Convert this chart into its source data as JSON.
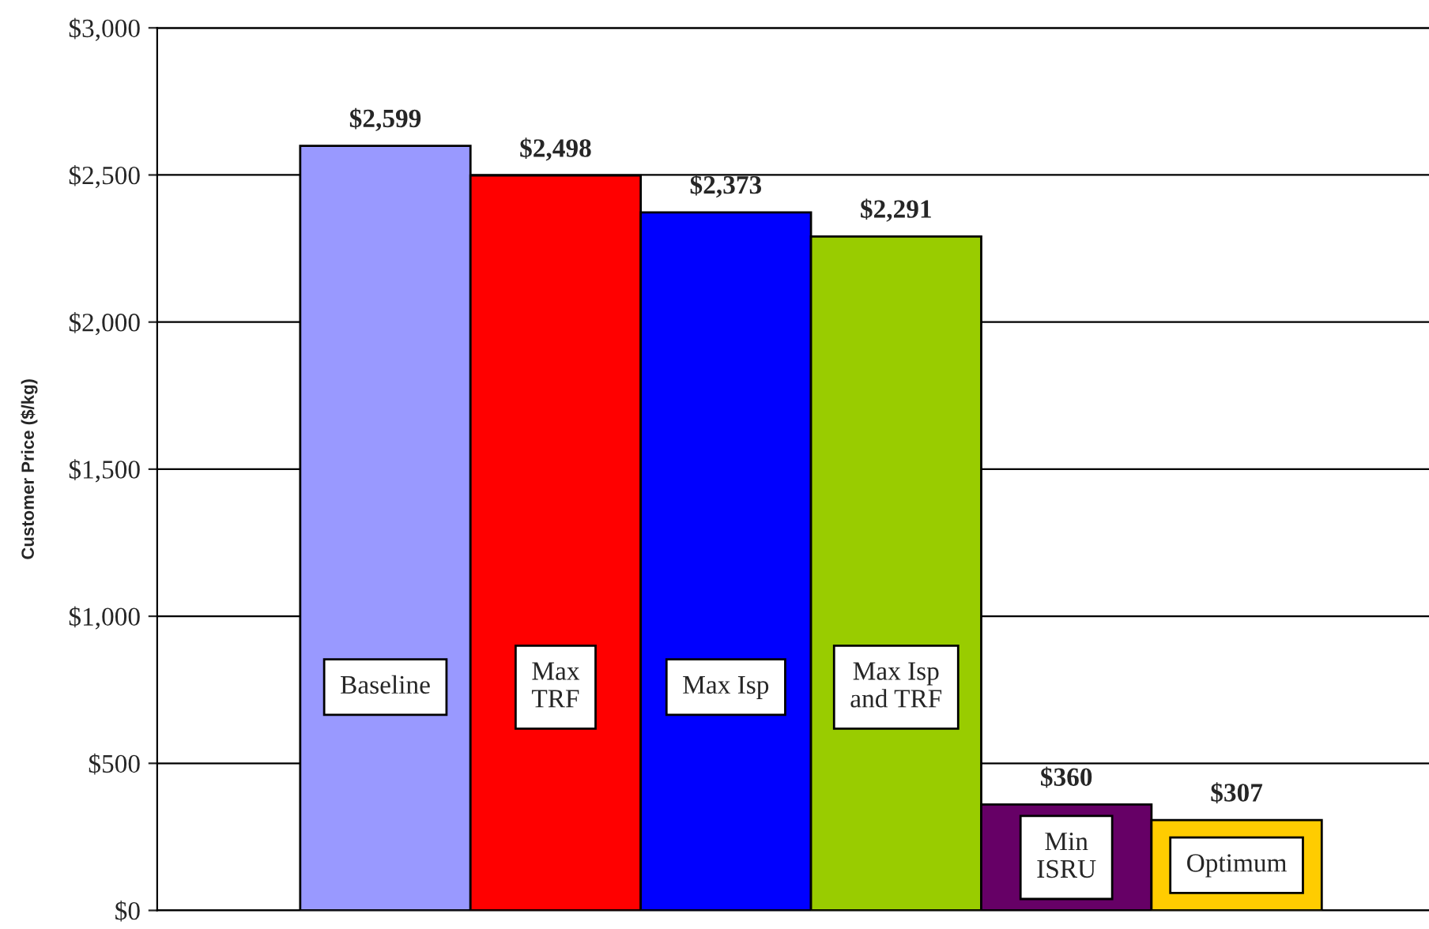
{
  "chart_data": {
    "type": "bar",
    "ylabel": "Customer Price ($/kg)",
    "categories": [
      "Baseline",
      "Max\nTRF",
      "Max Isp",
      "Max Isp\nand TRF",
      "Min\nISRU",
      "Optimum"
    ],
    "values": [
      2599,
      2498,
      2373,
      2291,
      360,
      307
    ],
    "colors": [
      "#9999ff",
      "#ff0000",
      "#0000ff",
      "#99cc00",
      "#660066",
      "#ffcc00"
    ],
    "value_labels": [
      "$2,599",
      "$2,498",
      "$2,373",
      "$2,291",
      "$360",
      "$307"
    ],
    "ylim": [
      0,
      3000
    ],
    "yticks": [
      {
        "value": 0,
        "label": "$0"
      },
      {
        "value": 500,
        "label": "$500"
      },
      {
        "value": 1000,
        "label": "$1,000"
      },
      {
        "value": 1500,
        "label": "$1,500"
      },
      {
        "value": 2000,
        "label": "$2,000"
      },
      {
        "value": 2500,
        "label": "$2,500"
      },
      {
        "value": 3000,
        "label": "$3,000"
      }
    ],
    "grid": "y",
    "legend": false
  }
}
